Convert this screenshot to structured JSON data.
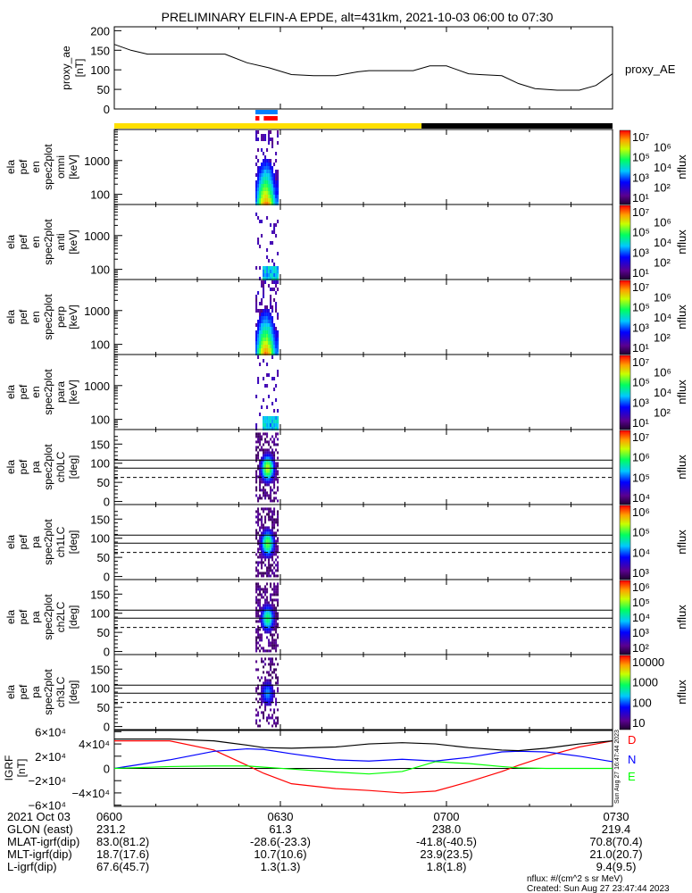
{
  "title": "PRELIMINARY ELFIN-A EPDE, alt=431km, 2021-10-03 06:00 to 07:30",
  "colors": {
    "accent_yellow": "#ffe000",
    "blue_bar": "#0080ff",
    "red_bar": "#ff0000",
    "D": "#ff0000",
    "N": "#0000ff",
    "E": "#00ff00",
    "F": "#000000"
  },
  "chart_data": [
    {
      "type": "line",
      "id": "proxy_ae",
      "ylabel_lines": [
        "proxy_ae",
        "[nT]"
      ],
      "legend": "proxy_AE",
      "ylim": [
        0,
        210
      ],
      "yticks": [
        0,
        50,
        100,
        150,
        200
      ],
      "ytick_labels": [
        "0",
        "50",
        "100",
        "150",
        "200"
      ],
      "x_minutes": [
        0,
        3,
        6,
        12,
        20,
        24,
        28,
        32,
        36,
        40,
        44,
        46,
        48,
        54,
        57,
        60,
        64,
        66,
        70,
        73,
        76,
        80,
        84,
        87,
        90
      ],
      "values": [
        165,
        150,
        140,
        140,
        140,
        118,
        105,
        88,
        85,
        85,
        95,
        98,
        98,
        98,
        110,
        110,
        90,
        88,
        85,
        65,
        52,
        48,
        48,
        60,
        90
      ]
    },
    {
      "type": "bar",
      "id": "zone_bars",
      "segments": [
        {
          "row": "blue",
          "from_min": 25.5,
          "to_min": 29.5
        },
        {
          "row": "red",
          "from_min": 25.5,
          "to_min": 26.2
        },
        {
          "row": "red",
          "from_min": 27.0,
          "to_min": 29.5
        },
        {
          "row": "yellow",
          "from_min": 0,
          "to_min": 55.5
        },
        {
          "row": "black",
          "from_min": 55.5,
          "to_min": 90
        }
      ]
    },
    {
      "type": "heatmap",
      "id": "energy_spectra",
      "time_window_min": [
        25.5,
        29.6
      ],
      "ylim_keV": [
        50,
        8300
      ],
      "ytick_labels": [
        "100",
        "1000"
      ],
      "panels": [
        {
          "name": "omni",
          "label_lines": [
            "ela",
            "pef",
            "en",
            "spec2plot",
            "omni",
            "[keV]"
          ],
          "peak_log_flux": 6.0,
          "cbar_labels": [
            "10⁷",
            "10⁶",
            "10⁵",
            "10⁴",
            "10³",
            "10²",
            "10¹"
          ],
          "cbar_range": [
            1,
            7
          ]
        },
        {
          "name": "anti",
          "label_lines": [
            "ela",
            "pef",
            "en",
            "spec2plot",
            "anti",
            "[keV]"
          ],
          "peak_log_flux": 3.5,
          "cbar_labels": [
            "10⁷",
            "10⁶",
            "10⁵",
            "10⁴",
            "10³",
            "10²",
            "10¹"
          ],
          "cbar_range": [
            1,
            7
          ]
        },
        {
          "name": "perp",
          "label_lines": [
            "ela",
            "pef",
            "en",
            "spec2plot",
            "perp",
            "[keV]"
          ],
          "peak_log_flux": 6.0,
          "cbar_labels": [
            "10⁷",
            "10⁶",
            "10⁵",
            "10⁴",
            "10³",
            "10²",
            "10¹"
          ],
          "cbar_range": [
            1,
            7
          ]
        },
        {
          "name": "para",
          "label_lines": [
            "ela",
            "pef",
            "en",
            "spec2plot",
            "para",
            "[keV]"
          ],
          "peak_log_flux": 3.5,
          "cbar_labels": [
            "10⁷",
            "10⁶",
            "10⁵",
            "10⁴",
            "10³",
            "10²",
            "10¹"
          ],
          "cbar_range": [
            1,
            7
          ]
        }
      ],
      "cbar_title": "nflux"
    },
    {
      "type": "heatmap",
      "id": "pitch_angle_spectra",
      "time_window_min": [
        25.5,
        29.6
      ],
      "ylim_deg": [
        -8,
        188
      ],
      "ytick_labels": [
        "0",
        "50",
        "100",
        "150"
      ],
      "yticks": [
        0,
        50,
        100,
        150
      ],
      "reference_lines_deg": {
        "solid": [
          87,
          108
        ],
        "dashed": [
          63
        ]
      },
      "panels": [
        {
          "name": "ch0LC",
          "label_lines": [
            "ela",
            "pef",
            "pa",
            "spec2plot",
            "ch0LC",
            "[deg]"
          ],
          "cbar_labels": [
            "10⁷",
            "10⁶",
            "10⁵",
            "10⁴"
          ],
          "cbar_range": [
            3.3,
            7.2
          ]
        },
        {
          "name": "ch1LC",
          "label_lines": [
            "ela",
            "pef",
            "pa",
            "spec2plot",
            "ch1LC",
            "[deg]"
          ],
          "cbar_labels": [
            "10⁶",
            "10⁵",
            "10⁴",
            "10³"
          ],
          "cbar_range": [
            2.8,
            6.4
          ]
        },
        {
          "name": "ch2LC",
          "label_lines": [
            "ela",
            "pef",
            "pa",
            "spec2plot",
            "ch2LC",
            "[deg]"
          ],
          "cbar_labels": [
            "10⁶",
            "10⁵",
            "10⁴",
            "10³",
            "10²"
          ],
          "cbar_range": [
            1.6,
            6.2
          ]
        },
        {
          "name": "ch3LC",
          "label_lines": [
            "ela",
            "pef",
            "pa",
            "spec2plot",
            "ch3LC",
            "[deg]"
          ],
          "cbar_labels": [
            "10000",
            "1000",
            "100",
            "10"
          ],
          "cbar_range": [
            0.9,
            4.2
          ]
        }
      ],
      "cbar_title": "nflux"
    },
    {
      "type": "line",
      "id": "igrf",
      "ylabel_lines": [
        "IGRF",
        "[nT]"
      ],
      "ylim": [
        -62000,
        62000
      ],
      "ytick_labels": [
        "6×10⁴",
        "4×10⁴",
        "2×10⁴",
        "0",
        "−2×10⁴",
        "−4×10⁴",
        "−6×10⁴"
      ],
      "yticks": [
        60000,
        40000,
        20000,
        0,
        -20000,
        -40000,
        -60000
      ],
      "x_minutes": [
        0,
        10,
        18,
        24,
        27,
        32,
        40,
        46,
        52,
        58,
        64,
        70,
        73,
        78,
        84,
        90
      ],
      "series": [
        {
          "name": "D",
          "values": [
            45000,
            45000,
            30000,
            5000,
            -8000,
            -25000,
            -33000,
            -36000,
            -40000,
            -37000,
            -22000,
            -5000,
            5000,
            20000,
            35000,
            45000
          ]
        },
        {
          "name": "N",
          "values": [
            0,
            14000,
            28000,
            32000,
            31000,
            24000,
            14000,
            12000,
            15000,
            12000,
            18000,
            27000,
            28000,
            27000,
            20000,
            11000
          ]
        },
        {
          "name": "E",
          "values": [
            0,
            3000,
            4000,
            4000,
            2000,
            -1000,
            -6000,
            -9000,
            -5000,
            11000,
            8000,
            3000,
            1000,
            0,
            0,
            0
          ]
        },
        {
          "name": "F",
          "values": [
            48000,
            48000,
            45000,
            38000,
            34000,
            33000,
            35000,
            40000,
            42000,
            40000,
            34000,
            30000,
            29000,
            33000,
            40000,
            45000
          ]
        }
      ],
      "legend": [
        "D",
        "N",
        "E"
      ],
      "side_stamp": "Sun Aug 27 16:47:44 2023"
    }
  ],
  "x_axis": {
    "ticks_min": [
      0,
      30,
      60,
      90
    ],
    "rows": [
      {
        "label": "2021 Oct 03",
        "values": [
          "0600",
          "0630",
          "0700",
          "0730"
        ]
      },
      {
        "label": "GLON (east)",
        "values": [
          "231.2",
          "61.3",
          "238.0",
          "219.4"
        ]
      },
      {
        "label": "MLAT-igrf(dip)",
        "values": [
          "83.0(81.2)",
          "-28.6(-23.3)",
          "-41.8(-40.5)",
          "70.8(70.4)"
        ]
      },
      {
        "label": "MLT-igrf(dip)",
        "values": [
          "18.7(17.6)",
          "10.7(10.6)",
          "23.9(23.5)",
          "21.0(20.7)"
        ]
      },
      {
        "label": "L-igrf(dip)",
        "values": [
          "67.6(45.7)",
          "1.3(1.3)",
          "1.8(1.8)",
          "9.4(9.5)"
        ]
      }
    ]
  },
  "footer": {
    "units": "nflux: #/(cm^2 s sr MeV)",
    "created": "Created: Sun Aug 27 23:47:44 2023"
  }
}
